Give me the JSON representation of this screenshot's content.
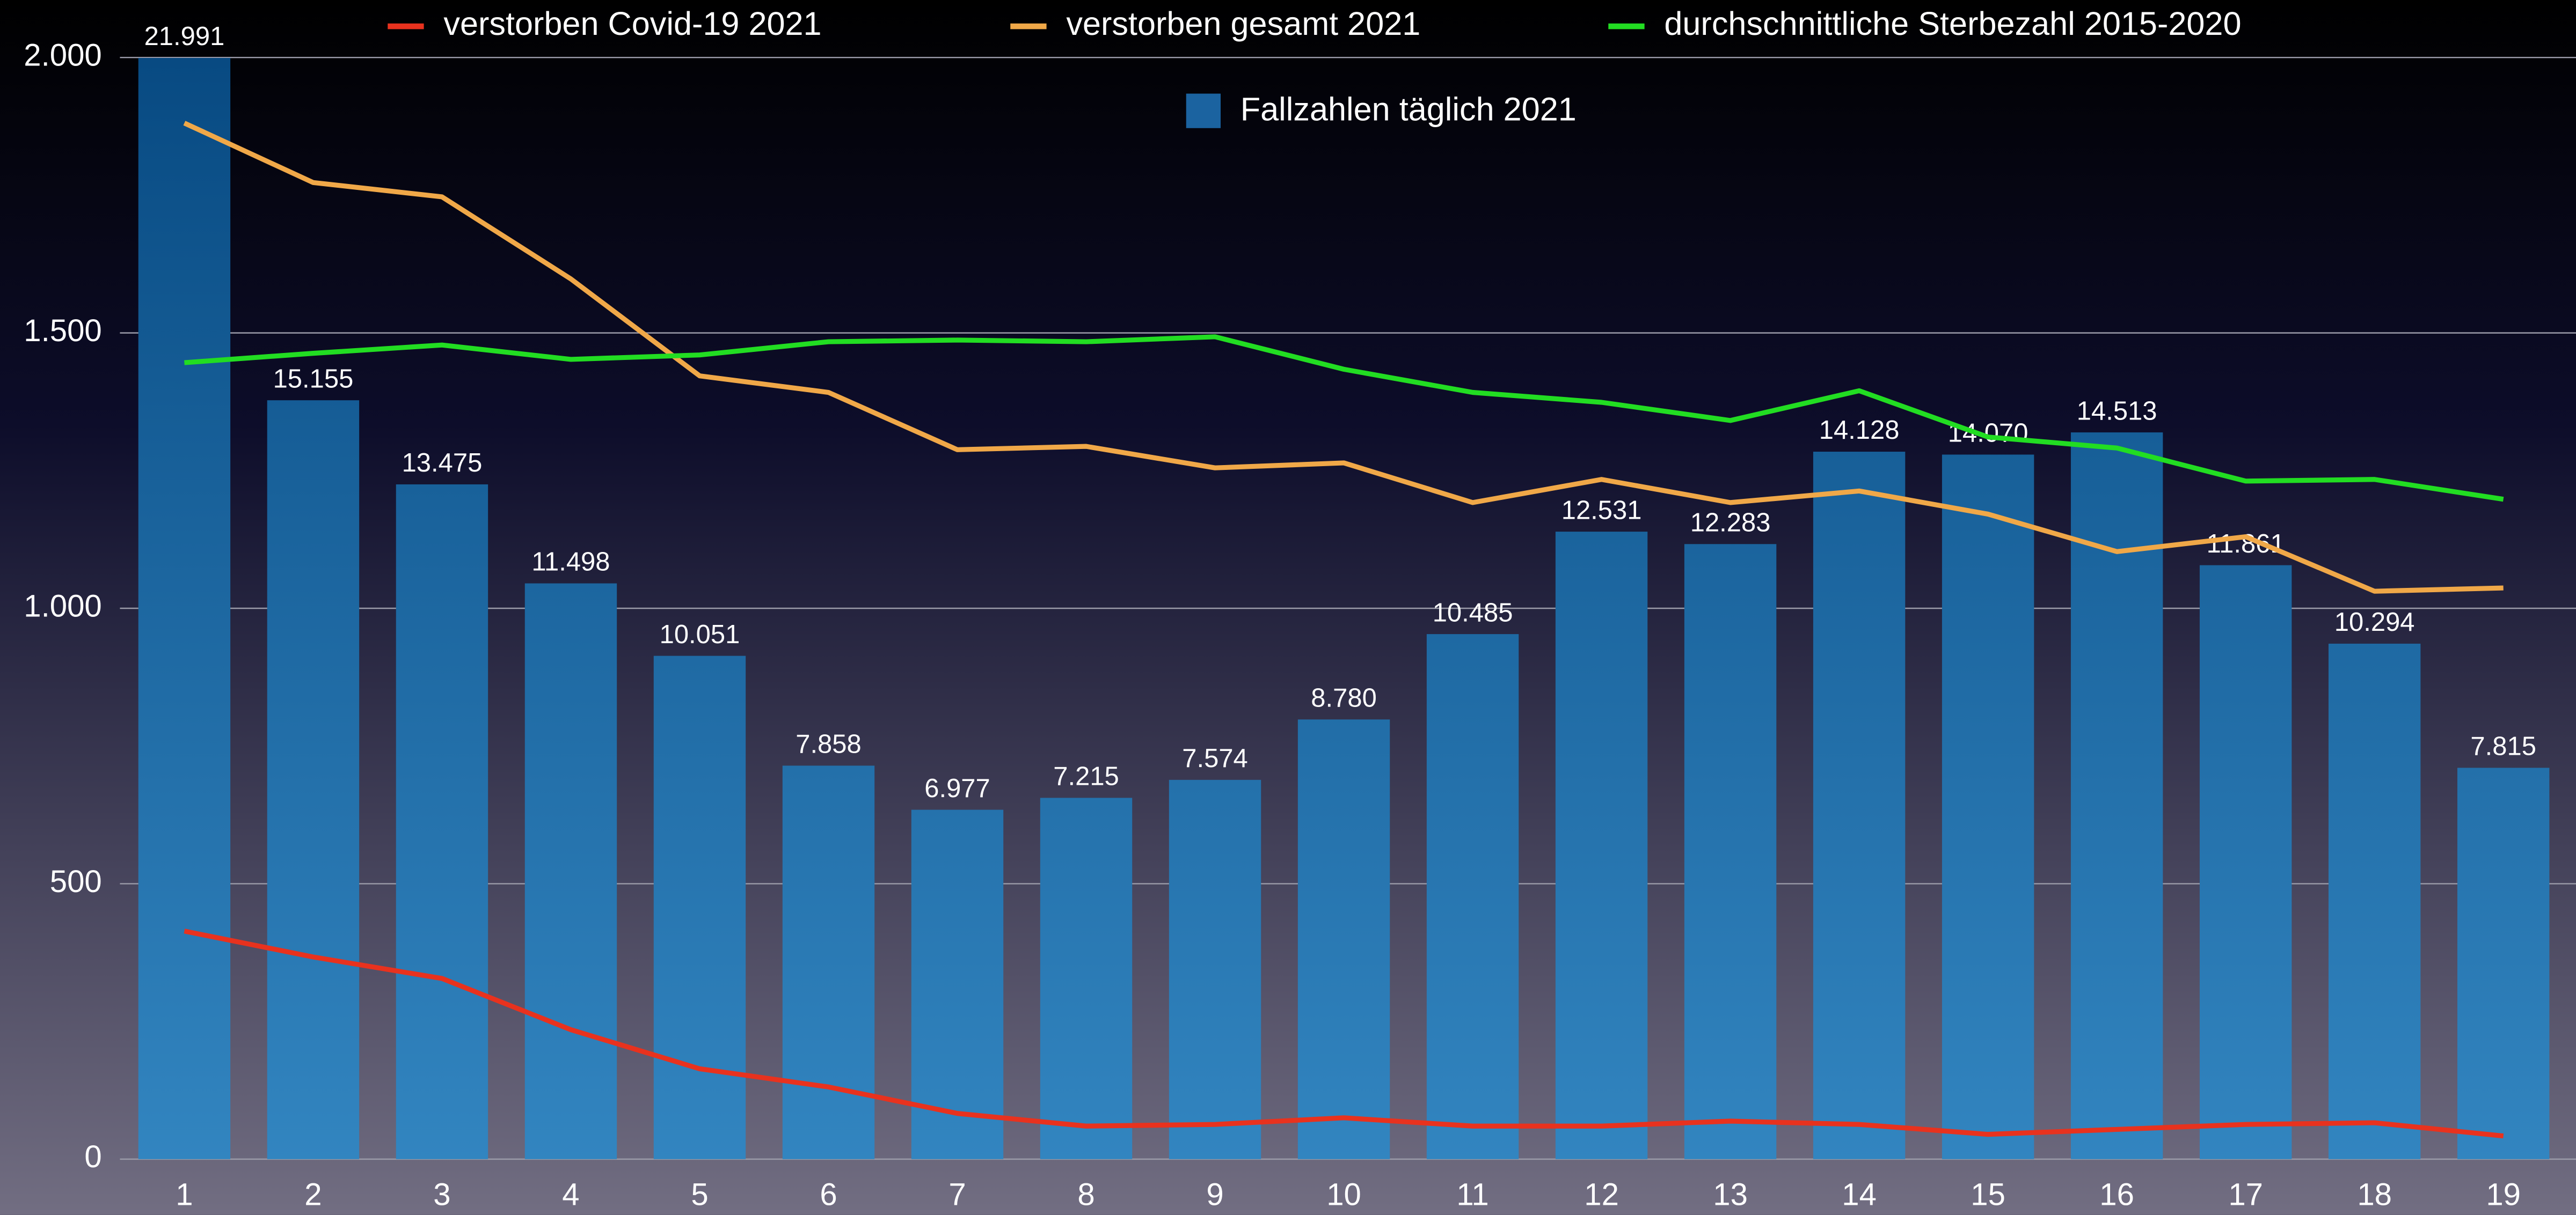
{
  "chart_data": {
    "type": "bar",
    "categories": [
      "1",
      "2",
      "3",
      "4",
      "5",
      "6",
      "7",
      "8",
      "9",
      "10",
      "11",
      "12",
      "13",
      "14",
      "15",
      "16",
      "17",
      "18",
      "19"
    ],
    "series": [
      {
        "name": "Fallzahlen täglich 2021",
        "type": "bar",
        "axis": "y2",
        "color": "#1b63a0",
        "values": [
          21991,
          15155,
          13475,
          11498,
          10051,
          7858,
          6977,
          7215,
          7574,
          8780,
          10485,
          12531,
          12283,
          14128,
          14070,
          14513,
          11861,
          10294,
          7815
        ],
        "value_labels": [
          "21.991",
          "15.155",
          "13.475",
          "11.498",
          "10.051",
          "7.858",
          "6.977",
          "7.215",
          "7.574",
          "8.780",
          "10.485",
          "12.531",
          "12.283",
          "14.128",
          "14.070",
          "14.513",
          "11.861",
          "10.294",
          "7.815"
        ]
      },
      {
        "name": "verstorben Covid-19 2021",
        "type": "line",
        "color": "#e8321e",
        "values": [
          414,
          367,
          328,
          235,
          164,
          131,
          83,
          60,
          63,
          75,
          60,
          60,
          69,
          63,
          45,
          54,
          63,
          66,
          42
        ]
      },
      {
        "name": "verstorben gesamt 2021",
        "type": "line",
        "color": "#f0a848",
        "values": [
          1881,
          1773,
          1747,
          1598,
          1422,
          1392,
          1288,
          1294,
          1255,
          1264,
          1192,
          1234,
          1192,
          1213,
          1171,
          1103,
          1130,
          1031,
          1037
        ]
      },
      {
        "name": "durchschnittliche Sterbezahl 2015-2020",
        "type": "line",
        "color": "#22dd22",
        "values": [
          1446,
          1463,
          1478,
          1452,
          1460,
          1484,
          1487,
          1484,
          1493,
          1434,
          1392,
          1374,
          1341,
          1395,
          1311,
          1291,
          1231,
          1234,
          1198
        ]
      }
    ],
    "ylim": [
      0,
      2000
    ],
    "yticks": [
      0,
      500,
      {
        "value": 1000,
        "label": "1.000"
      },
      {
        "value": 1500,
        "label": "1.500"
      },
      {
        "value": 2000,
        "label": "2.000"
      }
    ],
    "y2lim": [
      0,
      22000
    ],
    "grid": true,
    "legend": "top"
  }
}
